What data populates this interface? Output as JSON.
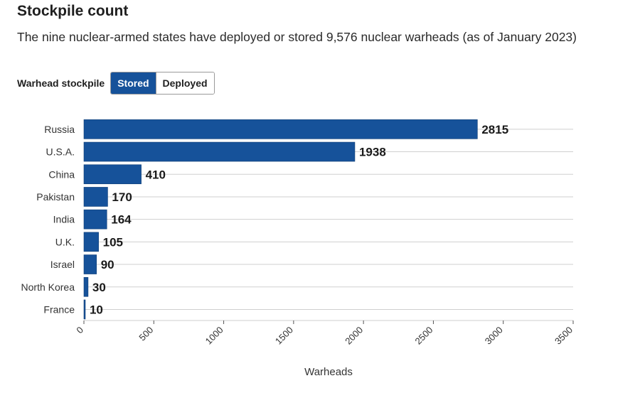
{
  "header": {
    "title": "Stockpile count",
    "subtitle": "The nine nuclear-armed states have deployed or stored 9,576 nuclear warheads (as of January 2023)"
  },
  "controls": {
    "label": "Warhead stockpile",
    "options": [
      "Stored",
      "Deployed"
    ],
    "selected": "Stored"
  },
  "colors": {
    "bar": "#16529a",
    "grid": "#cfcfcf",
    "axis": "#555555"
  },
  "chart_data": {
    "type": "bar",
    "orientation": "horizontal",
    "categories": [
      "Russia",
      "U.S.A.",
      "China",
      "Pakistan",
      "India",
      "U.K.",
      "Israel",
      "North Korea",
      "France"
    ],
    "values": [
      2815,
      1938,
      410,
      170,
      164,
      105,
      90,
      30,
      10
    ],
    "xlabel": "Warheads",
    "ylabel": "",
    "xlim": [
      0,
      3500
    ],
    "xticks": [
      0,
      500,
      1000,
      1500,
      2000,
      2500,
      3000,
      3500
    ],
    "grid": true,
    "data_labels": true
  }
}
